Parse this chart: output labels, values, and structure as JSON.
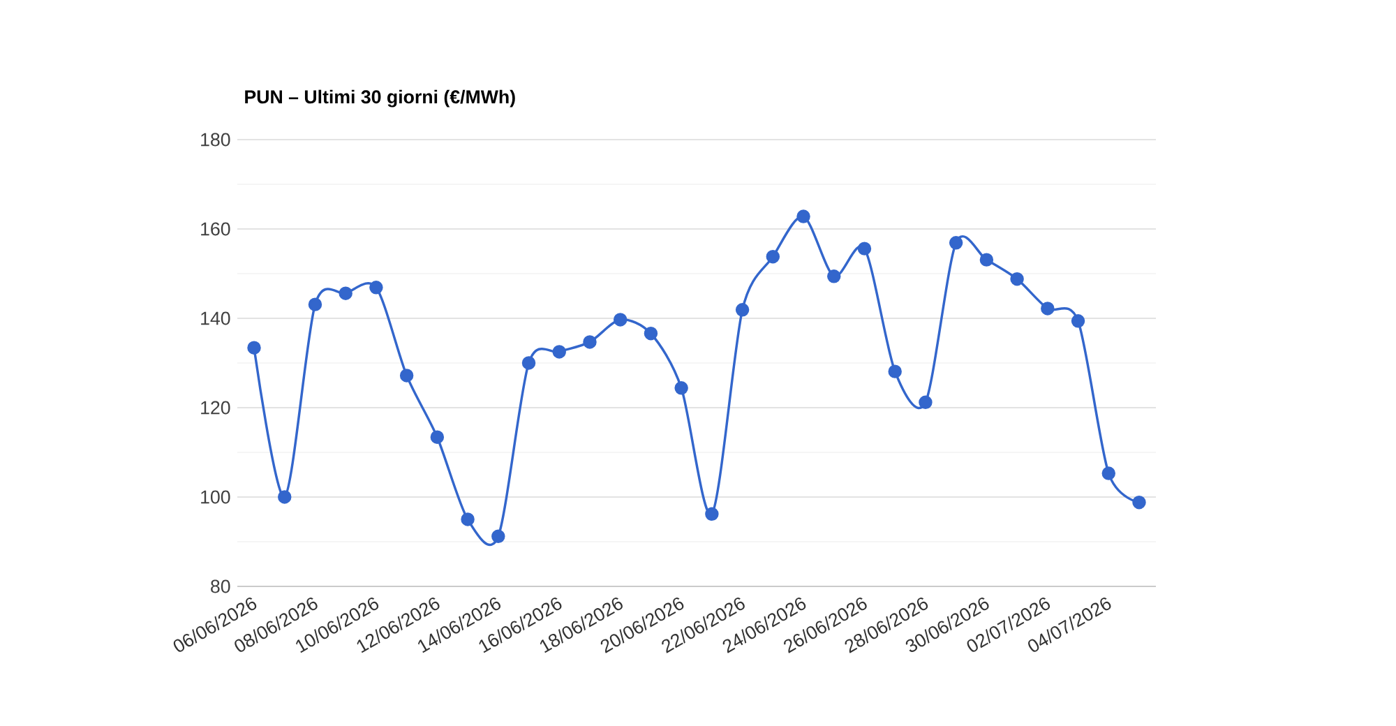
{
  "chart_data": {
    "type": "line",
    "title": "PUN – Ultimi 30 giorni (€/MWh)",
    "categories": [
      "06/06/2026",
      null,
      "08/06/2026",
      null,
      "10/06/2026",
      null,
      "12/06/2026",
      null,
      "14/06/2026",
      null,
      "16/06/2026",
      null,
      "18/06/2026",
      null,
      "20/06/2026",
      null,
      "22/06/2026",
      null,
      "24/06/2026",
      null,
      "26/06/2026",
      null,
      "28/06/2026",
      null,
      "30/06/2026",
      null,
      "02/07/2026",
      null,
      "04/07/2026",
      null
    ],
    "series": [
      {
        "color": "#3366cc",
        "values": [
          133.4,
          100,
          143.1,
          145.6,
          146.9,
          127.2,
          113.4,
          95,
          91.2,
          130,
          132.5,
          134.7,
          139.7,
          136.6,
          124.4,
          96.2,
          141.9,
          153.8,
          162.8,
          149.4,
          155.6,
          128.1,
          121.2,
          156.9,
          153.1,
          148.8,
          142.2,
          139.4,
          105.3,
          98.8
        ]
      }
    ],
    "ylim": [
      80,
      180
    ],
    "yticks": [
      80,
      100,
      120,
      140,
      160,
      180
    ],
    "grid": "y",
    "marker": "circle",
    "line_style": "solid"
  }
}
